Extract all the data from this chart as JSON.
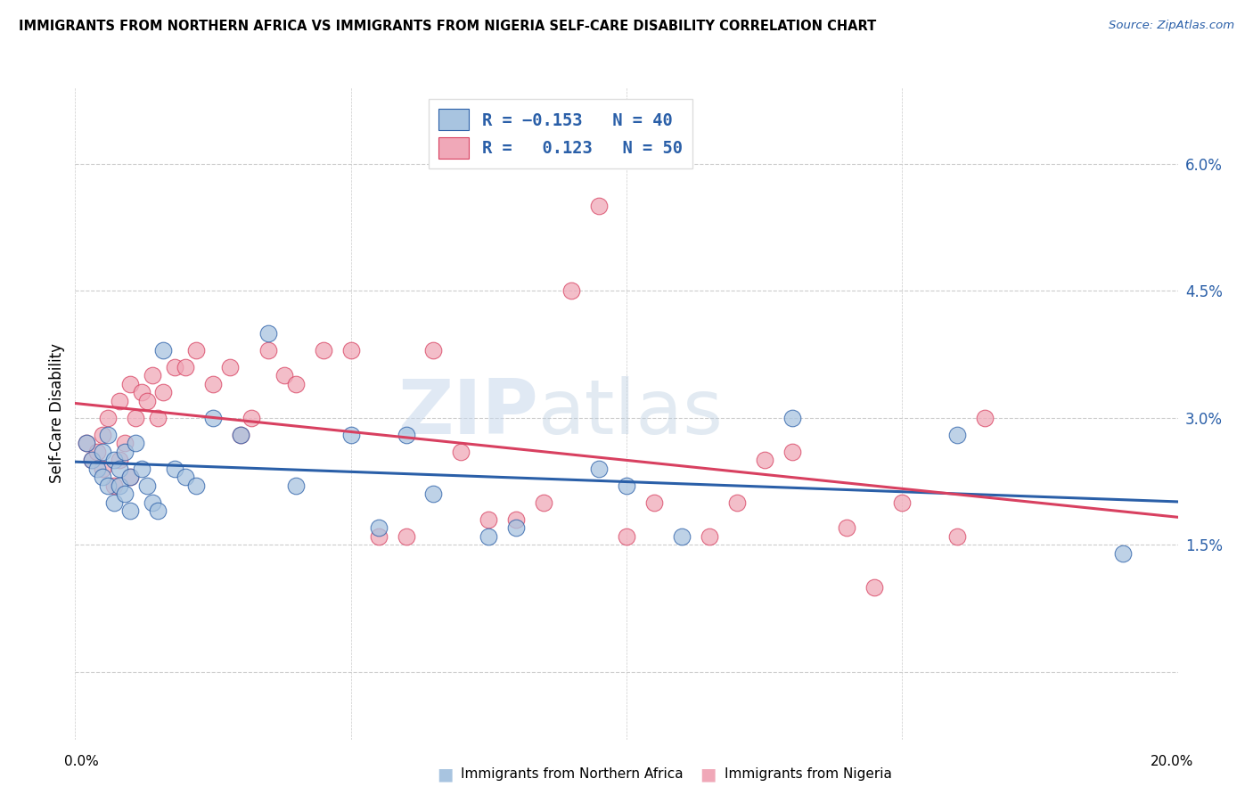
{
  "title": "IMMIGRANTS FROM NORTHERN AFRICA VS IMMIGRANTS FROM NIGERIA SELF-CARE DISABILITY CORRELATION CHART",
  "source": "Source: ZipAtlas.com",
  "ylabel": "Self-Care Disability",
  "yticks": [
    0.0,
    0.015,
    0.03,
    0.045,
    0.06
  ],
  "ytick_labels": [
    "",
    "1.5%",
    "3.0%",
    "4.5%",
    "6.0%"
  ],
  "xmin": 0.0,
  "xmax": 0.2,
  "ymin": -0.008,
  "ymax": 0.069,
  "legend1_color": "#a8c4e0",
  "legend2_color": "#f0a8b8",
  "line1_color": "#2a5fa8",
  "line2_color": "#d84060",
  "watermark_zip": "ZIP",
  "watermark_atlas": "atlas",
  "bottom_label1": "Immigrants from Northern Africa",
  "bottom_label2": "Immigrants from Nigeria",
  "blue_x": [
    0.002,
    0.003,
    0.004,
    0.005,
    0.005,
    0.006,
    0.006,
    0.007,
    0.007,
    0.008,
    0.008,
    0.009,
    0.009,
    0.01,
    0.01,
    0.011,
    0.012,
    0.013,
    0.014,
    0.015,
    0.016,
    0.018,
    0.02,
    0.022,
    0.025,
    0.03,
    0.035,
    0.04,
    0.05,
    0.055,
    0.06,
    0.065,
    0.075,
    0.08,
    0.095,
    0.1,
    0.11,
    0.13,
    0.16,
    0.19
  ],
  "blue_y": [
    0.027,
    0.025,
    0.024,
    0.026,
    0.023,
    0.028,
    0.022,
    0.025,
    0.02,
    0.024,
    0.022,
    0.026,
    0.021,
    0.023,
    0.019,
    0.027,
    0.024,
    0.022,
    0.02,
    0.019,
    0.038,
    0.024,
    0.023,
    0.022,
    0.03,
    0.028,
    0.04,
    0.022,
    0.028,
    0.017,
    0.028,
    0.021,
    0.016,
    0.017,
    0.024,
    0.022,
    0.016,
    0.03,
    0.028,
    0.014
  ],
  "pink_x": [
    0.002,
    0.003,
    0.004,
    0.005,
    0.005,
    0.006,
    0.007,
    0.008,
    0.008,
    0.009,
    0.01,
    0.01,
    0.011,
    0.012,
    0.013,
    0.014,
    0.015,
    0.016,
    0.018,
    0.02,
    0.022,
    0.025,
    0.028,
    0.03,
    0.032,
    0.035,
    0.038,
    0.04,
    0.045,
    0.05,
    0.055,
    0.06,
    0.065,
    0.07,
    0.075,
    0.08,
    0.085,
    0.09,
    0.095,
    0.1,
    0.105,
    0.115,
    0.12,
    0.125,
    0.13,
    0.14,
    0.145,
    0.15,
    0.16,
    0.165
  ],
  "pink_y": [
    0.027,
    0.025,
    0.026,
    0.024,
    0.028,
    0.03,
    0.022,
    0.025,
    0.032,
    0.027,
    0.023,
    0.034,
    0.03,
    0.033,
    0.032,
    0.035,
    0.03,
    0.033,
    0.036,
    0.036,
    0.038,
    0.034,
    0.036,
    0.028,
    0.03,
    0.038,
    0.035,
    0.034,
    0.038,
    0.038,
    0.016,
    0.016,
    0.038,
    0.026,
    0.018,
    0.018,
    0.02,
    0.045,
    0.055,
    0.016,
    0.02,
    0.016,
    0.02,
    0.025,
    0.026,
    0.017,
    0.01,
    0.02,
    0.016,
    0.03
  ]
}
